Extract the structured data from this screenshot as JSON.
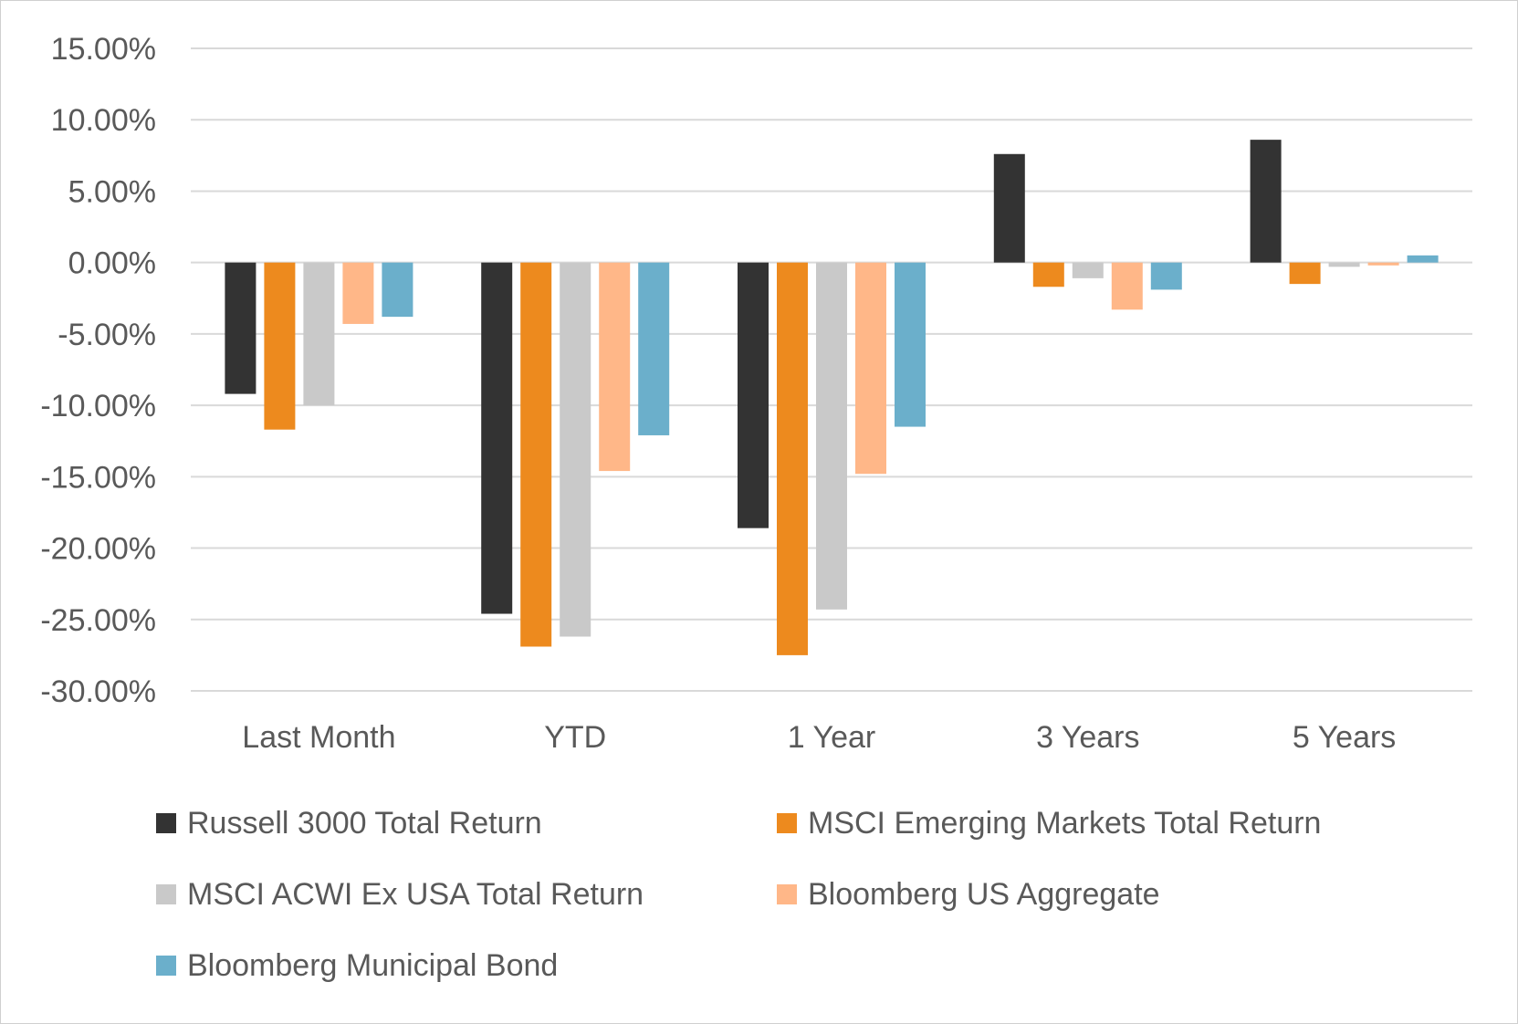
{
  "chart_data": {
    "type": "bar",
    "title": "",
    "xlabel": "",
    "ylabel": "",
    "categories": [
      "Last Month",
      "YTD",
      "1 Year",
      "3 Years",
      "5 Years"
    ],
    "ylim": [
      -30,
      15
    ],
    "yticks": [
      15,
      10,
      5,
      0,
      -5,
      -10,
      -15,
      -20,
      -25,
      -30
    ],
    "ytick_labels": [
      "15.00%",
      "10.00%",
      "5.00%",
      "0.00%",
      "-5.00%",
      "-10.00%",
      "-15.00%",
      "-20.00%",
      "-25.00%",
      "-30.00%"
    ],
    "grid": true,
    "legend_position": "bottom",
    "series": [
      {
        "name": "Russell 3000 Total Return",
        "color": "#333333",
        "values": [
          -9.2,
          -24.6,
          -18.6,
          7.6,
          8.6
        ]
      },
      {
        "name": "MSCI Emerging Markets Total Return",
        "color": "#ED8A1E",
        "values": [
          -11.7,
          -26.9,
          -27.5,
          -1.7,
          -1.5
        ]
      },
      {
        "name": "MSCI ACWI Ex USA Total Return",
        "color": "#C9C9C9",
        "values": [
          -10.0,
          -26.2,
          -24.3,
          -1.1,
          -0.3
        ]
      },
      {
        "name": "Bloomberg US Aggregate",
        "color": "#FFB788",
        "values": [
          -4.3,
          -14.6,
          -14.8,
          -3.3,
          -0.2
        ]
      },
      {
        "name": "Bloomberg Municipal Bond",
        "color": "#6BAFCB",
        "values": [
          -3.8,
          -12.1,
          -11.5,
          -1.9,
          0.5
        ]
      }
    ]
  }
}
